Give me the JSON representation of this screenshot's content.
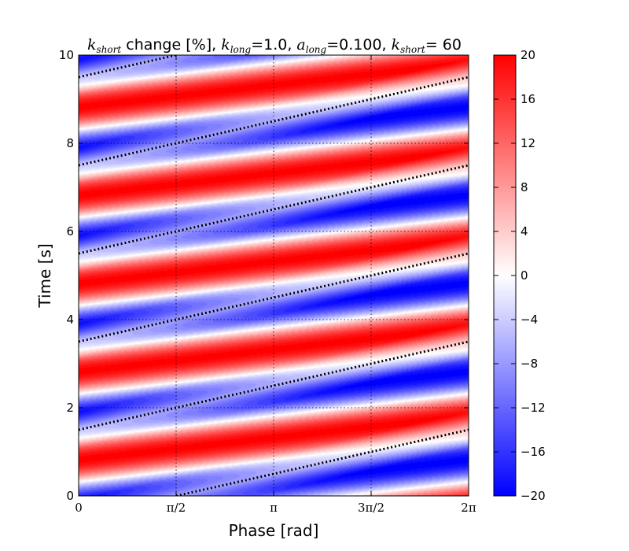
{
  "chart_data": {
    "type": "heatmap",
    "title": {
      "prefix_symbol": "k",
      "prefix_sub": "short",
      "prefix_text": " change [%], ",
      "p1_symbol": "k",
      "p1_sub": "long",
      "p1_eq": "=1.0, ",
      "p2_symbol": "a",
      "p2_sub": "long",
      "p2_eq": "=0.100, ",
      "p3_symbol": "k",
      "p3_sub": "short",
      "p3_eq": "= 60"
    },
    "xlabel": "Phase [rad]",
    "ylabel": "Time [s]",
    "xlim": [
      0,
      6.283185307
    ],
    "ylim": [
      0,
      10
    ],
    "x_ticks": [
      {
        "value": 0,
        "label": "0"
      },
      {
        "value": 1.570796327,
        "label": "π/2"
      },
      {
        "value": 3.141592654,
        "label": "π"
      },
      {
        "value": 4.71238898,
        "label": "3π/2"
      },
      {
        "value": 6.283185307,
        "label": "2π"
      }
    ],
    "y_ticks": [
      {
        "value": 0,
        "label": "0"
      },
      {
        "value": 2,
        "label": "2"
      },
      {
        "value": 4,
        "label": "4"
      },
      {
        "value": 6,
        "label": "6"
      },
      {
        "value": 8,
        "label": "8"
      },
      {
        "value": 10,
        "label": "10"
      }
    ],
    "grid": true,
    "colormap": "bwr",
    "colormap_colors": {
      "low": "#0000ff",
      "mid": "#ffffff",
      "high": "#ff0000"
    },
    "color_range": [
      -20,
      20
    ],
    "colorbar_ticks": [
      {
        "value": 20,
        "label": "20"
      },
      {
        "value": 16,
        "label": "16"
      },
      {
        "value": 12,
        "label": "12"
      },
      {
        "value": 8,
        "label": "8"
      },
      {
        "value": 4,
        "label": "4"
      },
      {
        "value": 0,
        "label": "0"
      },
      {
        "value": -4,
        "label": "−4"
      },
      {
        "value": -8,
        "label": "−8"
      },
      {
        "value": -12,
        "label": "−12"
      },
      {
        "value": -16,
        "label": "−16"
      },
      {
        "value": -20,
        "label": "−20"
      }
    ],
    "field_model": {
      "description": "change(x, t) ≈ 20·sin(π·t − x/2 − 1.0) modulated by a band-edge envelope between dotted lines",
      "period_s": 2,
      "amplitude_pct": 20
    },
    "dotted_lines": {
      "description": "t = 2n − 0.5 + x/π, n = 0..5",
      "slope_s_per_rad": 0.318309886,
      "points": [
        [
          [
            1.570796327,
            0.0
          ],
          [
            6.283185307,
            1.5
          ]
        ],
        [
          [
            0.0,
            1.5
          ],
          [
            6.283185307,
            3.5
          ]
        ],
        [
          [
            0.0,
            3.5
          ],
          [
            6.283185307,
            5.5
          ]
        ],
        [
          [
            0.0,
            5.5
          ],
          [
            6.283185307,
            7.5
          ]
        ],
        [
          [
            0.0,
            7.5
          ],
          [
            6.283185307,
            9.5
          ]
        ],
        [
          [
            0.0,
            9.5
          ],
          [
            1.570796327,
            10.0
          ]
        ]
      ]
    }
  }
}
